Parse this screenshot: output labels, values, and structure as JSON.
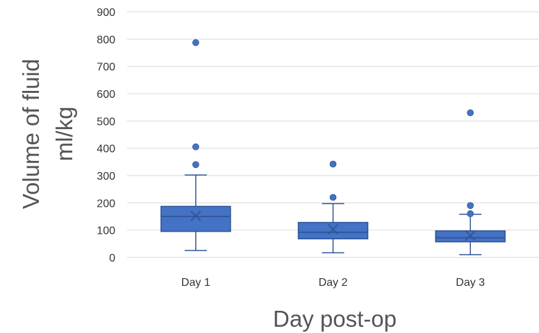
{
  "chart_data": {
    "type": "box",
    "title": "",
    "xlabel": "Day post-op",
    "ylabel": [
      "Volume of fluid",
      "ml/kg"
    ],
    "ylim": [
      0,
      900
    ],
    "yticks": [
      0,
      100,
      200,
      300,
      400,
      500,
      600,
      700,
      800,
      900
    ],
    "grid": true,
    "legend": "none",
    "color": "#4472c4",
    "edge_color": "#2f5597",
    "categories": [
      "Day 1",
      "Day 2",
      "Day 3"
    ],
    "boxes": [
      {
        "category": "Day 1",
        "whisker_low": 25,
        "q1": 95,
        "median": 150,
        "mean": 152,
        "q3": 187,
        "whisker_high": 302,
        "outliers": [
          340,
          405,
          787
        ]
      },
      {
        "category": "Day 2",
        "whisker_low": 17,
        "q1": 68,
        "median": 92,
        "mean": 103,
        "q3": 128,
        "whisker_high": 197,
        "outliers": [
          220,
          342
        ]
      },
      {
        "category": "Day 3",
        "whisker_low": 10,
        "q1": 57,
        "median": 72,
        "mean": 80,
        "q3": 97,
        "whisker_high": 158,
        "outliers": [
          160,
          190,
          530
        ]
      }
    ]
  }
}
